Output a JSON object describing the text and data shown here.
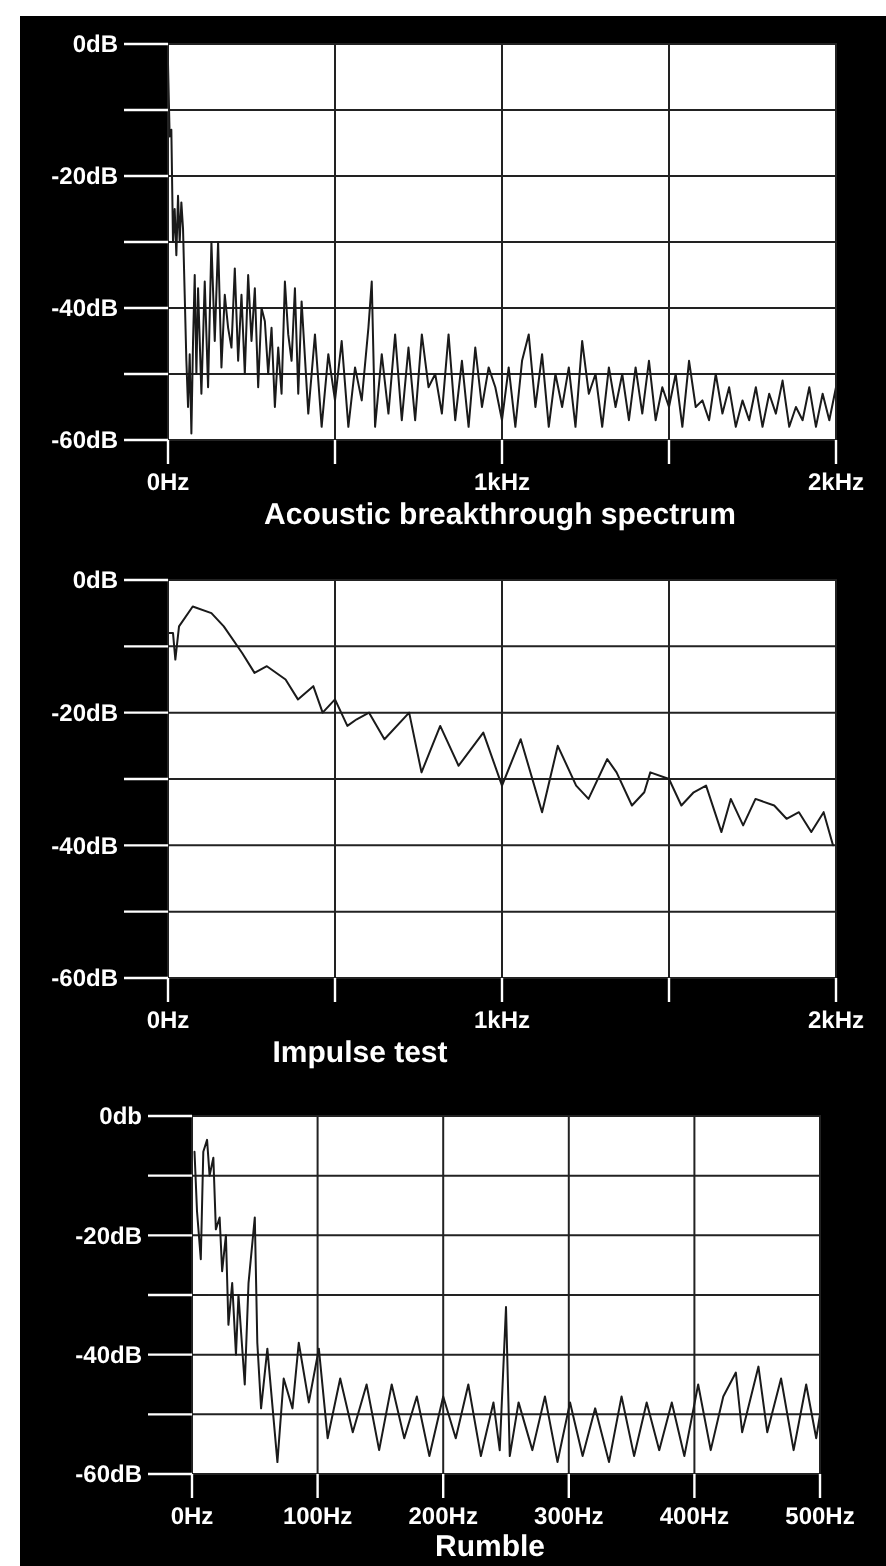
{
  "chart_data": [
    {
      "type": "line",
      "title": "Acoustic breakthrough spectrum",
      "xlim": [
        0,
        2
      ],
      "ylim": [
        -60,
        0
      ],
      "grid": true,
      "xticks": [
        {
          "value": 0,
          "label": "0Hz"
        },
        {
          "value": 0.5,
          "label": null
        },
        {
          "value": 1,
          "label": "1kHz"
        },
        {
          "value": 1.5,
          "label": null
        },
        {
          "value": 2,
          "label": "2kHz"
        }
      ],
      "yticks": [
        {
          "value": 0,
          "label": "0dB"
        },
        {
          "value": -10,
          "label": null
        },
        {
          "value": -20,
          "label": "-20dB"
        },
        {
          "value": -30,
          "label": null
        },
        {
          "value": -40,
          "label": "-40dB"
        },
        {
          "value": -50,
          "label": null
        },
        {
          "value": -60,
          "label": "-60dB"
        }
      ],
      "series": [
        {
          "color": "#1a1a1a",
          "x": [
            0,
            0.005,
            0.01,
            0.015,
            0.02,
            0.025,
            0.03,
            0.035,
            0.04,
            0.045,
            0.05,
            0.055,
            0.06,
            0.065,
            0.07,
            0.075,
            0.08,
            0.085,
            0.09,
            0.1,
            0.11,
            0.12,
            0.13,
            0.14,
            0.15,
            0.16,
            0.17,
            0.18,
            0.19,
            0.2,
            0.21,
            0.22,
            0.23,
            0.24,
            0.25,
            0.26,
            0.27,
            0.28,
            0.29,
            0.3,
            0.31,
            0.32,
            0.33,
            0.34,
            0.35,
            0.36,
            0.37,
            0.38,
            0.39,
            0.4,
            0.42,
            0.44,
            0.46,
            0.48,
            0.5,
            0.52,
            0.54,
            0.56,
            0.58,
            0.6,
            0.61,
            0.62,
            0.64,
            0.66,
            0.68,
            0.7,
            0.72,
            0.74,
            0.76,
            0.78,
            0.8,
            0.82,
            0.84,
            0.86,
            0.88,
            0.9,
            0.92,
            0.94,
            0.96,
            0.98,
            1,
            1.02,
            1.04,
            1.06,
            1.08,
            1.1,
            1.12,
            1.14,
            1.16,
            1.18,
            1.2,
            1.22,
            1.24,
            1.26,
            1.28,
            1.3,
            1.32,
            1.34,
            1.36,
            1.38,
            1.4,
            1.42,
            1.44,
            1.46,
            1.48,
            1.5,
            1.52,
            1.54,
            1.56,
            1.58,
            1.6,
            1.62,
            1.64,
            1.66,
            1.68,
            1.7,
            1.72,
            1.74,
            1.76,
            1.78,
            1.8,
            1.82,
            1.84,
            1.86,
            1.88,
            1.9,
            1.92,
            1.94,
            1.96,
            1.98,
            2
          ],
          "values": [
            -3,
            -14,
            -13,
            -30,
            -25,
            -32,
            -23,
            -30,
            -24,
            -28,
            -38,
            -48,
            -55,
            -47,
            -59,
            -45,
            -35,
            -50,
            -37,
            -53,
            -36,
            -52,
            -30,
            -45,
            -30,
            -49,
            -38,
            -43,
            -46,
            -34,
            -48,
            -38,
            -50,
            -35,
            -45,
            -37,
            -52,
            -40,
            -42,
            -50,
            -43,
            -55,
            -46,
            -53,
            -36,
            -44,
            -48,
            -37,
            -53,
            -39,
            -56,
            -44,
            -58,
            -47,
            -54,
            -45,
            -58,
            -49,
            -54,
            -43,
            -36,
            -58,
            -47,
            -56,
            -44,
            -57,
            -46,
            -57,
            -44,
            -52,
            -50,
            -56,
            -44,
            -57,
            -48,
            -58,
            -46,
            -55,
            -49,
            -52,
            -57,
            -49,
            -58,
            -48,
            -44,
            -55,
            -47,
            -58,
            -50,
            -55,
            -49,
            -58,
            -45,
            -53,
            -50,
            -58,
            -49,
            -55,
            -50,
            -57,
            -49,
            -56,
            -48,
            -57,
            -52,
            -55,
            -50,
            -58,
            -48,
            -55,
            -54,
            -57,
            -50,
            -56,
            -52,
            -58,
            -54,
            -57,
            -52,
            -58,
            -53,
            -56,
            -51,
            -58,
            -55,
            -57,
            -52,
            -58,
            -53,
            -57,
            -52
          ]
        }
      ]
    },
    {
      "type": "line",
      "title": "Impulse test",
      "xlim": [
        0,
        2
      ],
      "ylim": [
        -60,
        0
      ],
      "grid": true,
      "xticks": [
        {
          "value": 0,
          "label": "0Hz"
        },
        {
          "value": 0.5,
          "label": null
        },
        {
          "value": 1,
          "label": "1kHz"
        },
        {
          "value": 1.5,
          "label": null
        },
        {
          "value": 2,
          "label": "2kHz"
        }
      ],
      "yticks": [
        {
          "value": 0,
          "label": "0dB"
        },
        {
          "value": -10,
          "label": null
        },
        {
          "value": -20,
          "label": "-20dB"
        },
        {
          "value": -30,
          "label": null
        },
        {
          "value": -40,
          "label": "-40dB"
        },
        {
          "value": -50,
          "label": null
        },
        {
          "value": -60,
          "label": "-60dB"
        }
      ],
      "series": [
        {
          "color": "#1a1a1a",
          "x": [
            0,
            0.015,
            0.022,
            0.033,
            0.074,
            0.13,
            0.167,
            0.222,
            0.259,
            0.296,
            0.352,
            0.389,
            0.435,
            0.463,
            0.5,
            0.537,
            0.565,
            0.602,
            0.648,
            0.722,
            0.759,
            0.815,
            0.87,
            0.944,
            1,
            1.056,
            1.12,
            1.167,
            1.222,
            1.259,
            1.315,
            1.343,
            1.389,
            1.426,
            1.444,
            1.5,
            1.537,
            1.574,
            1.611,
            1.657,
            1.685,
            1.722,
            1.759,
            1.815,
            1.852,
            1.889,
            1.926,
            1.963,
            1.991
          ],
          "values": [
            -8,
            -8,
            -12,
            -7,
            -4,
            -5,
            -7,
            -11,
            -14,
            -13,
            -15,
            -18,
            -16,
            -20,
            -18,
            -22,
            -21,
            -20,
            -24,
            -20,
            -29,
            -22,
            -28,
            -23,
            -31,
            -24,
            -35,
            -25,
            -31,
            -33,
            -27,
            -29,
            -34,
            -32,
            -29,
            -30,
            -34,
            -32,
            -31,
            -38,
            -33,
            -37,
            -33,
            -34,
            -36,
            -35,
            -38,
            -35,
            -40
          ]
        }
      ]
    },
    {
      "type": "line",
      "title": "Rumble",
      "xlim": [
        0,
        500
      ],
      "ylim": [
        -60,
        0
      ],
      "grid": true,
      "xticks": [
        {
          "value": 0,
          "label": "0Hz"
        },
        {
          "value": 100,
          "label": "100Hz"
        },
        {
          "value": 200,
          "label": "200Hz"
        },
        {
          "value": 300,
          "label": "300Hz"
        },
        {
          "value": 400,
          "label": "400Hz"
        },
        {
          "value": 500,
          "label": "500Hz"
        }
      ],
      "yticks": [
        {
          "value": 0,
          "label": "0db"
        },
        {
          "value": -10,
          "label": null
        },
        {
          "value": -20,
          "label": "-20dB"
        },
        {
          "value": -30,
          "label": null
        },
        {
          "value": -40,
          "label": "-40dB"
        },
        {
          "value": -50,
          "label": null
        },
        {
          "value": -60,
          "label": "-60dB"
        }
      ],
      "series": [
        {
          "color": "#1a1a1a",
          "x": [
            2,
            4,
            7,
            9,
            12,
            14,
            17,
            19,
            22,
            24,
            27,
            29,
            32,
            35,
            37,
            42,
            45,
            50,
            52,
            55,
            60,
            68,
            73,
            80,
            85,
            93,
            101,
            108,
            118,
            128,
            139,
            149,
            159,
            169,
            179,
            189,
            200,
            210,
            220,
            230,
            240,
            245,
            250,
            253,
            260,
            271,
            281,
            291,
            301,
            311,
            321,
            332,
            342,
            352,
            362,
            372,
            382,
            392,
            403,
            413,
            423,
            433,
            438,
            451,
            458,
            469,
            479,
            489,
            497,
            500
          ],
          "values": [
            -6,
            -16,
            -24,
            -6,
            -4,
            -10,
            -7,
            -19,
            -17,
            -26,
            -20,
            -35,
            -28,
            -40,
            -30,
            -45,
            -28,
            -17,
            -38,
            -49,
            -39,
            -58,
            -44,
            -49,
            -38,
            -48,
            -39,
            -54,
            -44,
            -53,
            -45,
            -56,
            -45,
            -54,
            -47,
            -57,
            -47,
            -54,
            -45,
            -57,
            -48,
            -56,
            -32,
            -57,
            -48,
            -56,
            -47,
            -58,
            -48,
            -57,
            -49,
            -58,
            -47,
            -57,
            -48,
            -56,
            -48,
            -57,
            -45,
            -56,
            -47,
            -43,
            -53,
            -42,
            -53,
            -44,
            -56,
            -45,
            -54,
            -50
          ]
        }
      ]
    }
  ]
}
